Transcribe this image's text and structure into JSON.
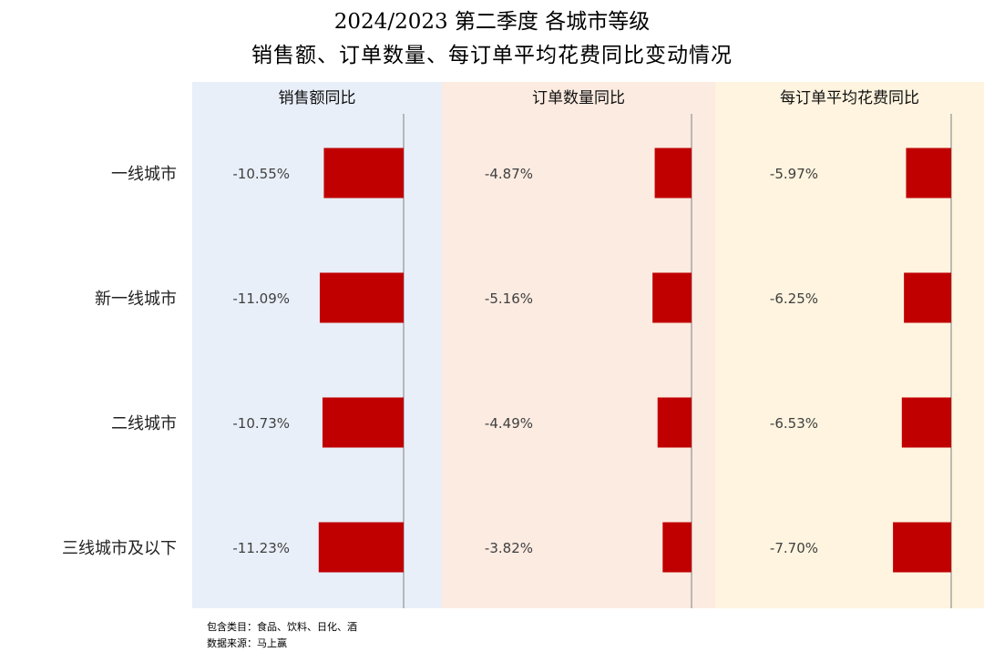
{
  "title_line1": "2024/2023 第二季度 各城市等级",
  "title_line2": "销售额、订单数量、每订单平均花费同比变动情况",
  "footnotes": {
    "categories_note": "包含类目：食品、饮料、日化、酒",
    "source_note": "数据来源：马上赢"
  },
  "colors": {
    "bar": "#c00000",
    "panel_bgs": [
      "#e8eff8",
      "#fcebe1",
      "#fef4df"
    ],
    "axis": "#a6a6a6"
  },
  "chart_data": {
    "type": "bar",
    "orientation": "horizontal",
    "categories": [
      "一线城市",
      "新一线城市",
      "二线城市",
      "三线城市及以下"
    ],
    "series": [
      {
        "name": "销售额同比",
        "values": [
          -10.55,
          -11.09,
          -10.73,
          -11.23
        ],
        "labels": [
          "-10.55%",
          "-11.09%",
          "-10.73%",
          "-11.23%"
        ]
      },
      {
        "name": "订单数量同比",
        "values": [
          -4.87,
          -5.16,
          -4.49,
          -3.82
        ],
        "labels": [
          "-4.87%",
          "-5.16%",
          "-4.49%",
          "-3.82%"
        ]
      },
      {
        "name": "每订单平均花费同比",
        "values": [
          -5.97,
          -6.25,
          -6.53,
          -7.7
        ],
        "labels": [
          "-5.97%",
          "-6.25%",
          "-6.53%",
          "-7.70%"
        ]
      }
    ],
    "unit": "%",
    "grid": false,
    "legend": "none"
  }
}
